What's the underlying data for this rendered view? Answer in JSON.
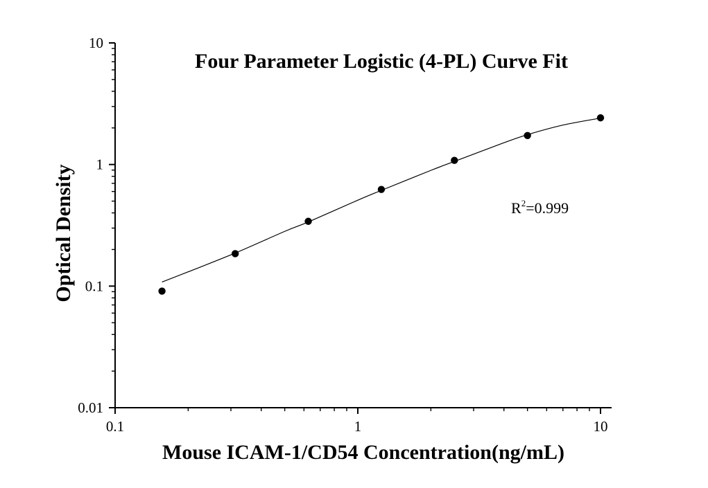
{
  "chart_data": {
    "type": "scatter",
    "title": "Four Parameter Logistic (4-PL) Curve Fit",
    "xlabel": "Mouse ICAM-1/CD54 Concentration(ng/mL)",
    "ylabel": "Optical Density",
    "xscale": "log",
    "yscale": "log",
    "xlim": [
      0.1,
      10
    ],
    "ylim": [
      0.01,
      10
    ],
    "x_ticks": [
      {
        "value": 0.1,
        "label": "0.1"
      },
      {
        "value": 1,
        "label": "1"
      },
      {
        "value": 10,
        "label": "10"
      }
    ],
    "y_ticks": [
      {
        "value": 0.01,
        "label": "0.01"
      },
      {
        "value": 0.1,
        "label": "0.1"
      },
      {
        "value": 1,
        "label": "1"
      },
      {
        "value": 10,
        "label": "10"
      }
    ],
    "grid": false,
    "series": [
      {
        "type": "scatter",
        "x": [
          0.156,
          0.3125,
          0.625,
          1.25,
          2.5,
          5,
          10
        ],
        "y": [
          0.091,
          0.185,
          0.341,
          0.624,
          1.082,
          1.731,
          2.42
        ]
      },
      {
        "type": "line",
        "x": [
          0.156,
          0.2,
          0.3125,
          0.5,
          0.625,
          1.0,
          1.25,
          2.0,
          2.5,
          4.0,
          5.0,
          7.0,
          10.0
        ],
        "y": [
          0.108,
          0.131,
          0.187,
          0.282,
          0.337,
          0.509,
          0.613,
          0.895,
          1.06,
          1.51,
          1.76,
          2.11,
          2.41
        ]
      }
    ],
    "annotation": {
      "base": "R",
      "superscript": "2",
      "rest": "=0.999"
    }
  }
}
